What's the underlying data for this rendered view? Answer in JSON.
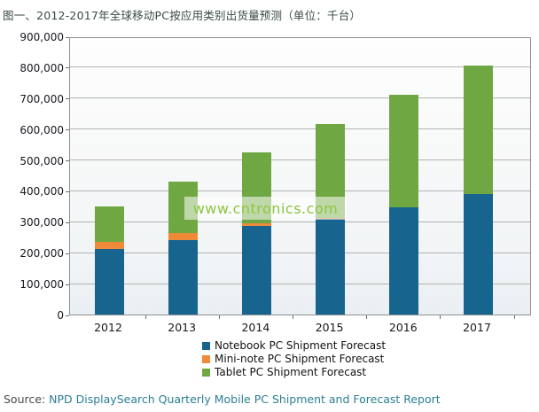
{
  "page": {
    "title": "图一、2012-2017年全球移动PC按应用类别出货量预测（单位：千台）",
    "watermark": "www.cntronics.com",
    "source_label": "Source: ",
    "source_link_text": "NPD DisplaySearch Quarterly Mobile PC Shipment and Forecast Report"
  },
  "chart_data": {
    "type": "bar",
    "stacked": true,
    "title": "图一、2012-2017年全球移动PC按应用类别出货量预测（单位：千台）",
    "unit_label": "千台",
    "categories": [
      "2012",
      "2013",
      "2014",
      "2015",
      "2016",
      "2017"
    ],
    "series": [
      {
        "name": "Notebook PC Shipment Forecast",
        "color": "#17658f",
        "values": [
          213000,
          241000,
          288000,
          310000,
          346000,
          390000
        ]
      },
      {
        "name": "Mini-note PC Shipment Forecast",
        "color": "#ee8a38",
        "values": [
          21000,
          22000,
          8000,
          3000,
          2000,
          1000
        ]
      },
      {
        "name": "Tablet PC Shipment Forecast",
        "color": "#6fa843",
        "values": [
          116000,
          168000,
          230000,
          304000,
          363000,
          416000
        ]
      }
    ],
    "stack_totals": [
      350000,
      431000,
      526000,
      617000,
      711000,
      807000
    ],
    "ylim": [
      0,
      900000
    ],
    "y_tick_step": 100000,
    "y_tick_labels": [
      "0",
      "100,000",
      "200,000",
      "300,000",
      "400,000",
      "500,000",
      "600,000",
      "700,000",
      "800,000",
      "900,000"
    ],
    "grid": "horizontal",
    "legend_position": "bottom"
  },
  "style": {
    "grid_color": "#b3b3b3",
    "plot_border_color": "#8f8f8f",
    "title_color": "#3a4a45",
    "axis_text_color": "#17171f",
    "watermark_color": "#8dc63f",
    "source_link_color": "#2b7e92"
  }
}
